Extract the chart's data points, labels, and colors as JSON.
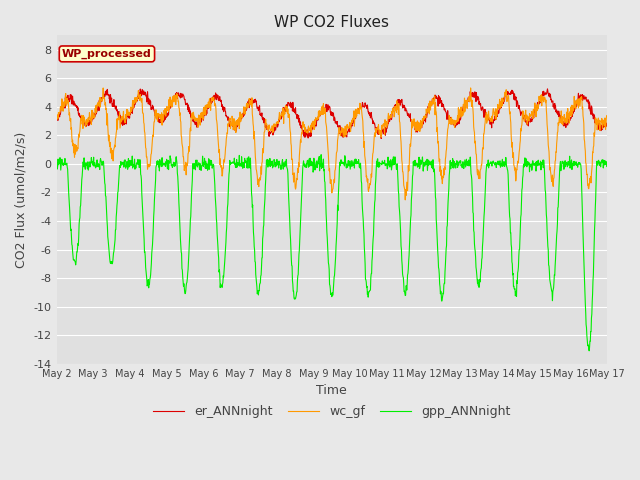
{
  "title": "WP CO2 Fluxes",
  "xlabel": "Time",
  "ylabel_display": "CO2 Flux (umol/m2/s)",
  "ylim": [
    -14,
    9
  ],
  "yticks": [
    -14,
    -12,
    -10,
    -8,
    -6,
    -4,
    -2,
    0,
    2,
    4,
    6,
    8
  ],
  "x_start": 2,
  "x_end": 17,
  "xtick_positions": [
    2,
    3,
    4,
    5,
    6,
    7,
    8,
    9,
    10,
    11,
    12,
    13,
    14,
    15,
    16,
    17
  ],
  "xtick_labels": [
    "May 2",
    "May 3",
    "May 4",
    "May 5",
    "May 6",
    "May 7",
    "May 8",
    "May 9",
    "May 10",
    "May 11",
    "May 12",
    "May 13",
    "May 14",
    "May 15",
    "May 16",
    "May 17"
  ],
  "legend_entries": [
    "gpp_ANNnight",
    "er_ANNnight",
    "wc_gf"
  ],
  "colors": {
    "gpp": "#00ee00",
    "er": "#dd0000",
    "wc": "#ff9900"
  },
  "line_width": 0.8,
  "fig_bg": "#e8e8e8",
  "plot_bg": "#e0e0e0",
  "annotation_text": "WP_processed",
  "annotation_bg": "#ffffcc",
  "annotation_border": "#cc0000",
  "annotation_text_color": "#990000",
  "grid_color": "#ffffff",
  "title_fontsize": 11,
  "axis_label_fontsize": 9,
  "tick_fontsize": 8,
  "legend_fontsize": 9,
  "gpp_day_amps": [
    7.0,
    7.0,
    8.5,
    9.0,
    8.5,
    9.0,
    9.5,
    9.2,
    9.3,
    9.0,
    9.5,
    8.5,
    9.0,
    9.0,
    13.0
  ],
  "er_base": 3.5,
  "er_amp": 1.0,
  "wc_base": 2.0,
  "wc_amp": 4.5,
  "pts_per_day": 96,
  "n_days": 15
}
